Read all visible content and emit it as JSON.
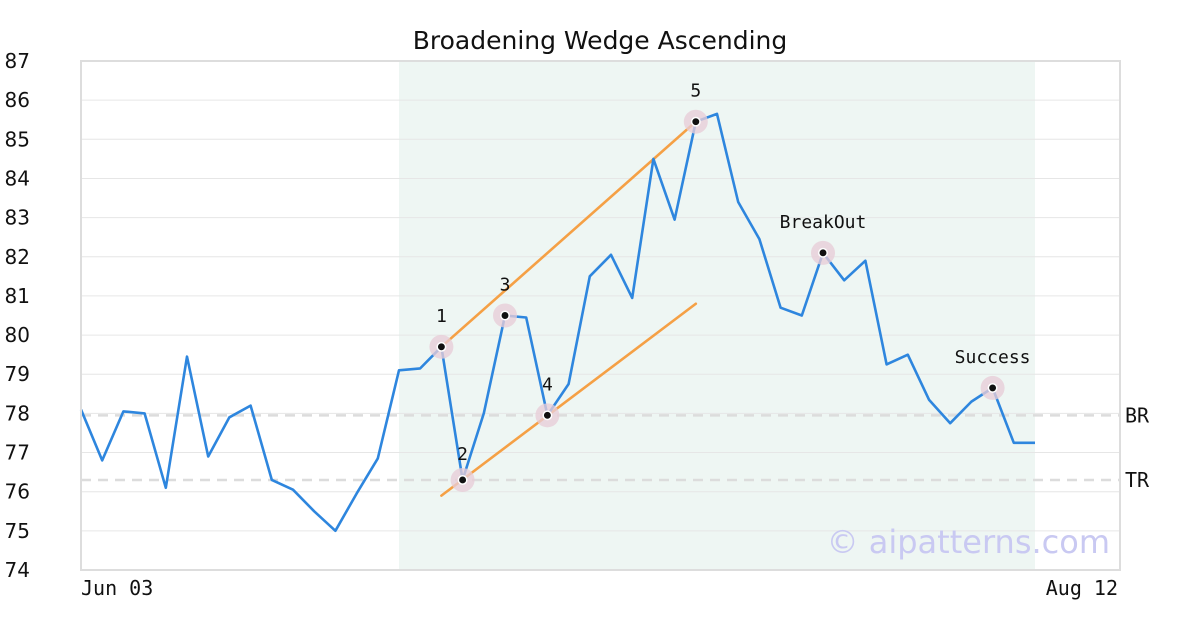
{
  "chart_data": {
    "type": "line",
    "title": "Broadening Wedge Ascending",
    "xlabel": "",
    "ylabel": "",
    "x_tick_labels": [
      "Jun 03",
      "Aug 12"
    ],
    "ylim": [
      74,
      87
    ],
    "yticks": [
      74,
      75,
      76,
      77,
      78,
      79,
      80,
      81,
      82,
      83,
      84,
      85,
      86,
      87
    ],
    "grid": true,
    "line_color": "#2e86de",
    "series": [
      {
        "values": [
          78.1,
          76.8,
          78.05,
          78.0,
          76.1,
          79.45,
          76.9,
          77.9,
          78.2,
          76.3,
          76.05,
          75.5,
          75.0,
          75.95,
          76.85,
          79.1,
          79.15,
          79.7,
          76.3,
          78.0,
          80.5,
          80.45,
          77.95,
          78.75,
          81.5,
          82.05,
          80.95,
          84.5,
          82.95,
          85.45,
          85.65,
          83.4,
          82.45,
          80.7,
          80.5,
          82.1,
          81.4,
          81.9,
          79.25,
          79.5,
          78.35,
          77.75,
          78.3,
          78.65,
          77.25,
          77.25
        ]
      }
    ],
    "pattern_region": {
      "start_index": 15,
      "end_index": 45,
      "color": "#eef6f3"
    },
    "trend_lines": [
      {
        "name": "upper",
        "from": [
          17,
          79.7
        ],
        "to": [
          29,
          85.45
        ],
        "color": "#f5a045"
      },
      {
        "name": "lower",
        "from": [
          17,
          75.9
        ],
        "to": [
          29,
          80.8
        ],
        "color": "#f5a045"
      }
    ],
    "annotations": [
      {
        "label": "1",
        "index": 17,
        "value": 79.7
      },
      {
        "label": "2",
        "index": 18,
        "value": 76.3
      },
      {
        "label": "3",
        "index": 20,
        "value": 80.5
      },
      {
        "label": "4",
        "index": 22,
        "value": 77.95
      },
      {
        "label": "5",
        "index": 29,
        "value": 85.45
      },
      {
        "label": "BreakOut",
        "index": 35,
        "value": 82.1
      },
      {
        "label": "Success",
        "index": 43,
        "value": 78.65
      }
    ],
    "reference_lines": [
      {
        "label": "BR",
        "value": 77.95
      },
      {
        "label": "TR",
        "value": 76.3
      }
    ]
  },
  "watermark": "© aipatterns.com"
}
